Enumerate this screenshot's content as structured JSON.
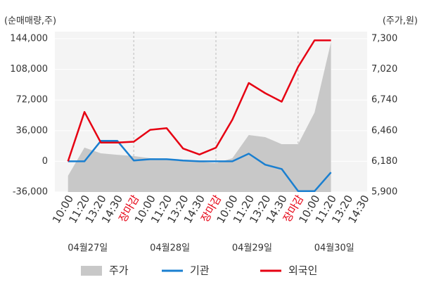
{
  "chart_data": {
    "type": "line",
    "left_axis_title": "(순매매량,주)",
    "right_axis_title": "(주가,원)",
    "categories": [
      "10:00",
      "11:20",
      "13:20",
      "14:30",
      "장마감",
      "10:00",
      "11:20",
      "13:20",
      "14:30",
      "장마감",
      "10:00",
      "11:20",
      "13:20",
      "14:30",
      "장마감",
      "10:00",
      "11:20",
      "13:20",
      "14:30"
    ],
    "category_colors": [
      "#333333",
      "#333333",
      "#333333",
      "#333333",
      "#e60012",
      "#333333",
      "#333333",
      "#333333",
      "#333333",
      "#e60012",
      "#333333",
      "#333333",
      "#333333",
      "#333333",
      "#e60012",
      "#333333",
      "#333333",
      "#333333",
      "#333333"
    ],
    "days": [
      "04월27일",
      "04월28일",
      "04월29일",
      "04월30일"
    ],
    "series": [
      {
        "name": "주가",
        "color": "#c8c8c8",
        "axis": "y2",
        "kind": "area",
        "values": [
          6048,
          6305,
          6253,
          6240,
          6228,
          6208,
          6202,
          6189,
          6176,
          6163,
          6208,
          6420,
          6401,
          6337,
          6337,
          6626,
          7268,
          null,
          null
        ]
      },
      {
        "name": "기관",
        "color": "#1a7fd0",
        "kind": "line",
        "values": [
          0,
          0,
          24000,
          24000,
          1000,
          2500,
          2500,
          1000,
          0,
          0,
          0,
          9000,
          -4000,
          -9000,
          -35000,
          -35000,
          -13000,
          null,
          null
        ]
      },
      {
        "name": "외국인",
        "color": "#e60012",
        "kind": "line",
        "values": [
          0,
          58000,
          22000,
          22000,
          23000,
          37000,
          39000,
          15000,
          8000,
          16000,
          49000,
          92000,
          80000,
          70000,
          111000,
          142000,
          142000,
          null,
          null
        ]
      }
    ],
    "ylim": [
      -36000,
      144000
    ],
    "yticks": [
      {
        "value": -36000,
        "label": "-36,000"
      },
      0,
      {
        "value": 36000,
        "label": "36,000"
      },
      {
        "value": 72000,
        "label": "72,000"
      },
      {
        "value": 108000,
        "label": "108,000"
      },
      {
        "value": 144000,
        "label": "144,000"
      }
    ],
    "y2lim": [
      5900,
      7300
    ],
    "y2ticks": [
      {
        "value": 5900,
        "label": "5,900"
      },
      {
        "value": 6180,
        "label": "6,180"
      },
      {
        "value": 6460,
        "label": "6,460"
      },
      {
        "value": 6740,
        "label": "6,740"
      },
      {
        "value": 7020,
        "label": "7,020"
      },
      {
        "value": 7300,
        "label": "7,300"
      }
    ],
    "grid": true
  }
}
